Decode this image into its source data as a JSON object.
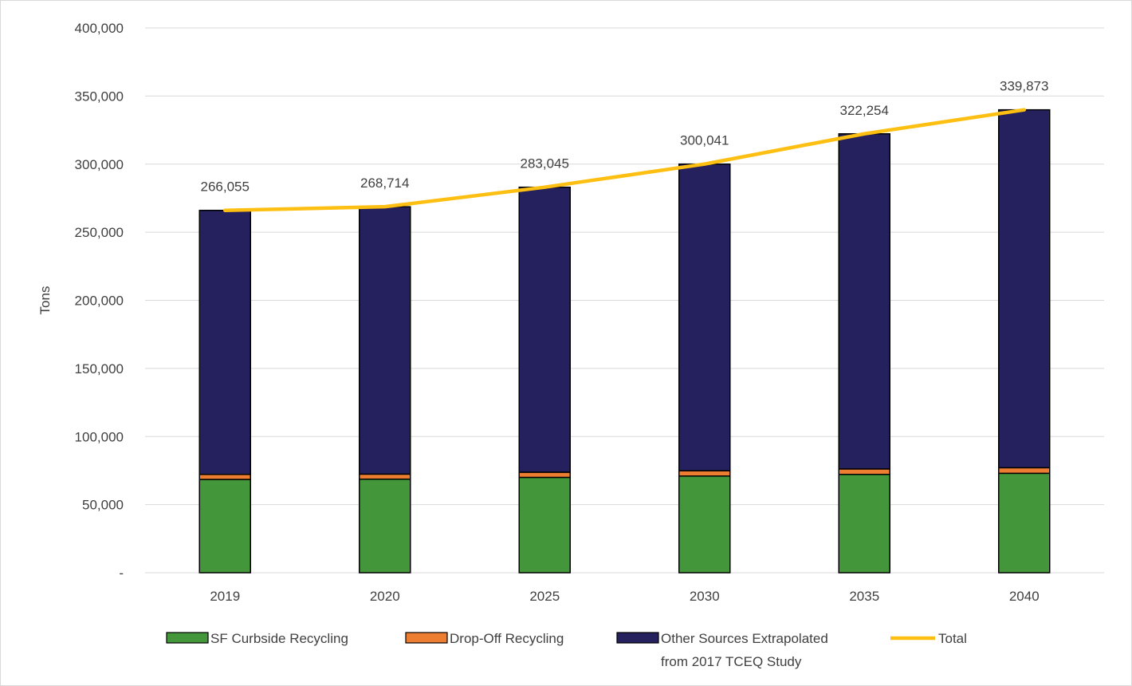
{
  "chart_data": {
    "type": "bar",
    "stacked": true,
    "title": "",
    "xlabel": "",
    "ylabel": "Tons",
    "ylim": [
      0,
      400000
    ],
    "yticks": [
      0,
      50000,
      100000,
      150000,
      200000,
      250000,
      300000,
      350000,
      400000
    ],
    "ytick_labels": [
      "-",
      "50,000",
      "100,000",
      "150,000",
      "200,000",
      "250,000",
      "300,000",
      "350,000",
      "400,000"
    ],
    "categories": [
      "2019",
      "2020",
      "2025",
      "2030",
      "2035",
      "2040"
    ],
    "grid": "horizontal",
    "legend_position": "bottom",
    "series": [
      {
        "name": "SF Curbside Recycling",
        "kind": "bar",
        "color": "#43963a",
        "values": [
          68500,
          68700,
          70000,
          71000,
          72200,
          73000
        ]
      },
      {
        "name": "Drop-Off Recycling",
        "kind": "bar",
        "color": "#ed7d31",
        "values": [
          3700,
          3700,
          3800,
          3900,
          4000,
          4100
        ]
      },
      {
        "name_lines": [
          "Other Sources Extrapolated",
          "from 2017 TCEQ Study"
        ],
        "kind": "bar",
        "color": "#24215e",
        "values": [
          193855,
          196314,
          209245,
          225141,
          246054,
          262773
        ]
      },
      {
        "name": "Total",
        "kind": "line",
        "color": "#fdbf11",
        "values": [
          266055,
          268714,
          283045,
          300041,
          322254,
          339873
        ]
      }
    ],
    "data_labels": [
      "266,055",
      "268,714",
      "283,045",
      "300,041",
      "322,254",
      "339,873"
    ]
  }
}
